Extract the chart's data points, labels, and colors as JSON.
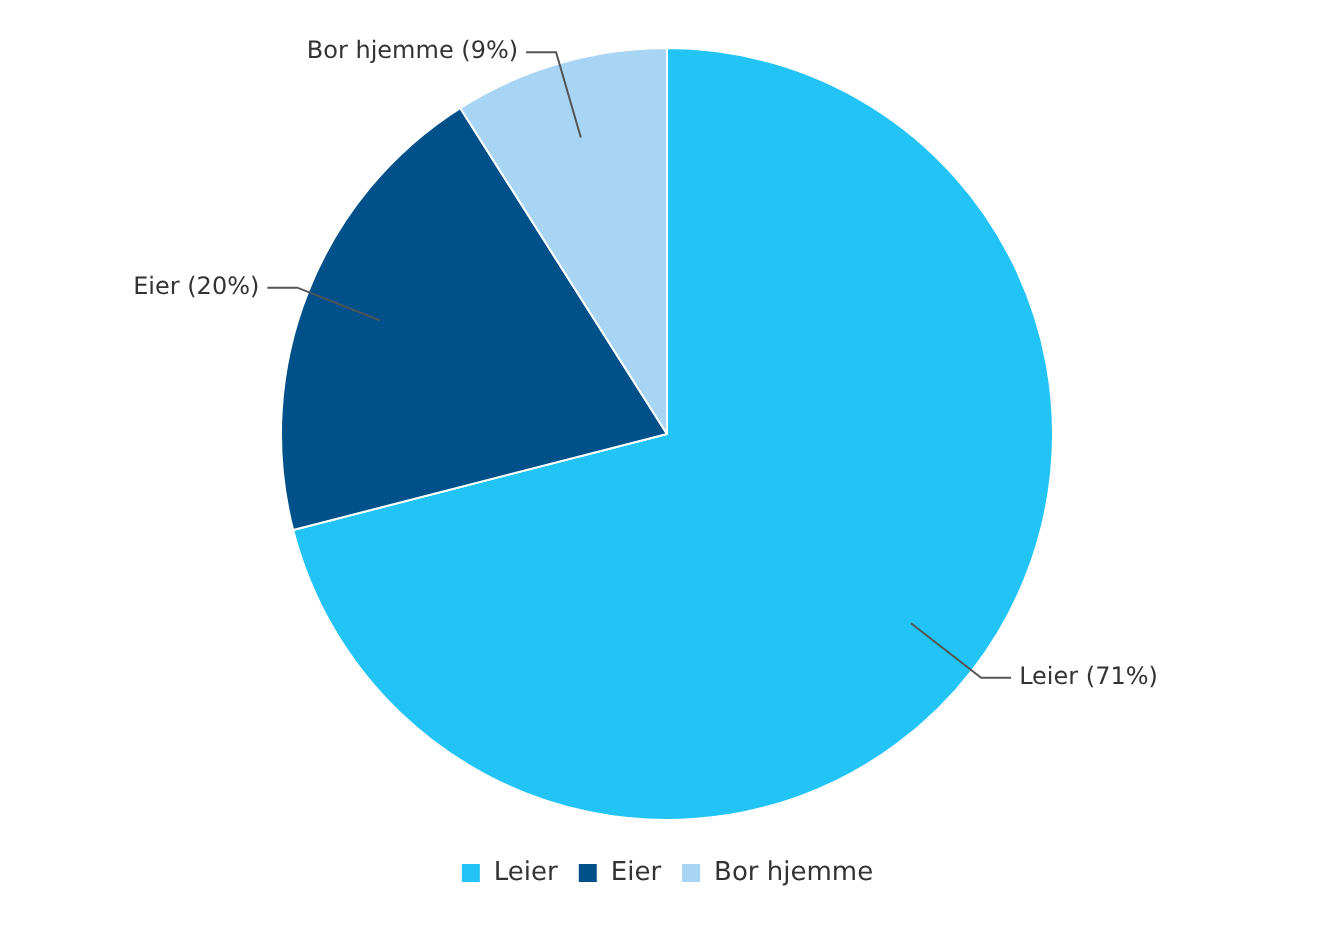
{
  "chart_data": {
    "type": "pie",
    "categories": [
      "Leier",
      "Eier",
      "Bor hjemme"
    ],
    "values": [
      71,
      20,
      9
    ],
    "colors": [
      "#21c4f5",
      "#00508a",
      "#a9d5f5"
    ],
    "value_labels": [
      "Leier (71%)",
      "Eier (20%)",
      "Bor hjemme (9%)"
    ],
    "legend": "bottom"
  }
}
